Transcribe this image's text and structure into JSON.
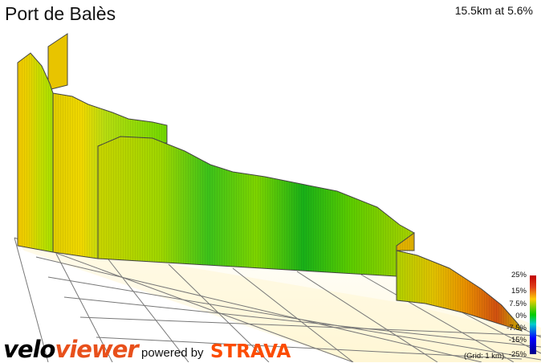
{
  "header": {
    "title": "Port de Balès",
    "summary": "15.5km at 5.6%"
  },
  "legend": {
    "ticks": [
      "25%",
      "15%",
      "7.5%",
      "0%",
      "-7.5%",
      "-15%",
      "-25%"
    ],
    "grid_note": "(Grid: 1 km)"
  },
  "branding": {
    "velo_part1": "velo",
    "velo_part2": "viewer",
    "powered_by": "powered by",
    "strava": "STRAVA"
  },
  "colors": {
    "accent_orange": "#fc4c02",
    "grade_high": "#c00000",
    "grade_mid": "#ffcc00",
    "grade_zero": "#00cc00",
    "grade_low": "#0000ff"
  }
}
